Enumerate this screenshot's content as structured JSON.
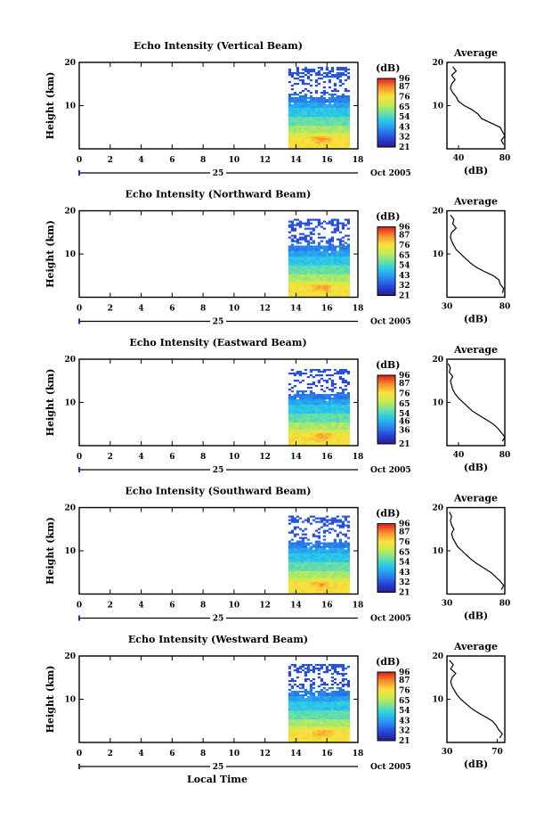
{
  "figure": {
    "common": {
      "height_axis_label": "Height (km)",
      "height_ticks": [
        "10",
        "20"
      ],
      "time_ticks": [
        "0",
        "2",
        "4",
        "6",
        "8",
        "10",
        "12",
        "14",
        "16",
        "18"
      ],
      "date_day": "25",
      "date_month": "Oct 2005",
      "colorbar_unit": "(dB)",
      "profile_title": "Average",
      "profile_xlabel": "(dB)",
      "xlabel": "Local Time"
    }
  },
  "chart_data": [
    {
      "type": "heatmap",
      "title": "Echo Intensity (Vertical Beam)",
      "ylabel": "Height (km)",
      "xlabel": "Local Time",
      "x_unit": "hour",
      "xlim": [
        0,
        18
      ],
      "ylim": [
        0,
        20
      ],
      "data_extent_hours": [
        13.5,
        17.3
      ],
      "data_top_km": 19,
      "colorbar_ticks": [
        "96",
        "87",
        "76",
        "65",
        "54",
        "43",
        "32",
        "21"
      ],
      "colorbar_ticks_num": [
        96,
        87,
        76,
        65,
        54,
        43,
        32,
        21
      ],
      "profile": {
        "title": "Average",
        "xlabel": "(dB)",
        "xticks": [
          "40",
          "80"
        ],
        "xlim": [
          30,
          80
        ],
        "heights_km": [
          1,
          2,
          3,
          4,
          5,
          6,
          7,
          8,
          9,
          10,
          11,
          12,
          13,
          14,
          15,
          16,
          17,
          18,
          19
        ],
        "values_db": [
          79,
          77,
          80,
          78,
          76,
          68,
          60,
          57,
          52,
          45,
          40,
          38,
          35,
          33,
          34,
          37,
          34,
          38,
          35
        ]
      }
    },
    {
      "type": "heatmap",
      "title": "Echo Intensity (Northward Beam)",
      "ylabel": "Height (km)",
      "xlabel": "Local Time",
      "x_unit": "hour",
      "xlim": [
        0,
        18
      ],
      "ylim": [
        0,
        20
      ],
      "data_extent_hours": [
        13.5,
        17.3
      ],
      "data_top_km": 18.5,
      "colorbar_ticks": [
        "96",
        "87",
        "76",
        "65",
        "54",
        "43",
        "32",
        "21"
      ],
      "colorbar_ticks_num": [
        96,
        87,
        76,
        65,
        54,
        43,
        32,
        21
      ],
      "profile": {
        "title": "Average",
        "xlabel": "(dB)",
        "xticks": [
          "30",
          "80"
        ],
        "xlim": [
          30,
          80
        ],
        "heights_km": [
          1,
          2,
          3,
          4,
          5,
          6,
          7,
          8,
          9,
          10,
          11,
          12,
          13,
          14,
          15,
          16,
          17,
          18,
          19
        ],
        "values_db": [
          78,
          79,
          76,
          75,
          70,
          62,
          55,
          50,
          46,
          42,
          38,
          36,
          34,
          33,
          34,
          38,
          35,
          36,
          33
        ]
      }
    },
    {
      "type": "heatmap",
      "title": "Echo Intensity (Eastward Beam)",
      "ylabel": "Height (km)",
      "xlabel": "Local Time",
      "x_unit": "hour",
      "xlim": [
        0,
        18
      ],
      "ylim": [
        0,
        20
      ],
      "data_extent_hours": [
        13.5,
        17.3
      ],
      "data_top_km": 18,
      "colorbar_ticks": [
        "96",
        "87",
        "76",
        "65",
        "54",
        "46",
        "36",
        "21"
      ],
      "colorbar_ticks_num": [
        96,
        87,
        76,
        65,
        54,
        46,
        36,
        21
      ],
      "profile": {
        "title": "Average",
        "xlabel": "(dB)",
        "xticks": [
          "40",
          "80"
        ],
        "xlim": [
          30,
          80
        ],
        "heights_km": [
          1,
          2,
          3,
          4,
          5,
          6,
          7,
          8,
          9,
          10,
          11,
          12,
          13,
          14,
          15,
          16,
          17,
          18,
          19
        ],
        "values_db": [
          78,
          80,
          77,
          74,
          70,
          64,
          58,
          52,
          48,
          44,
          40,
          37,
          35,
          34,
          33,
          35,
          32,
          33,
          31
        ]
      }
    },
    {
      "type": "heatmap",
      "title": "Echo Intensity (Southward Beam)",
      "ylabel": "Height (km)",
      "xlabel": "Local Time",
      "x_unit": "hour",
      "xlim": [
        0,
        18
      ],
      "ylim": [
        0,
        20
      ],
      "data_extent_hours": [
        13.5,
        17.3
      ],
      "data_top_km": 18.5,
      "colorbar_ticks": [
        "96",
        "87",
        "76",
        "65",
        "54",
        "43",
        "32",
        "21"
      ],
      "colorbar_ticks_num": [
        96,
        87,
        76,
        65,
        54,
        43,
        32,
        21
      ],
      "profile": {
        "title": "Average",
        "xlabel": "(dB)",
        "xticks": [
          "30",
          "80"
        ],
        "xlim": [
          30,
          80
        ],
        "heights_km": [
          1,
          2,
          3,
          4,
          5,
          6,
          7,
          8,
          9,
          10,
          11,
          12,
          13,
          14,
          15,
          16,
          17,
          18,
          19
        ],
        "values_db": [
          77,
          79,
          76,
          72,
          68,
          62,
          56,
          51,
          47,
          43,
          39,
          37,
          35,
          34,
          36,
          34,
          33,
          34,
          32
        ]
      }
    },
    {
      "type": "heatmap",
      "title": "Echo Intensity (Westward Beam)",
      "ylabel": "Height (km)",
      "xlabel": "Local Time",
      "x_unit": "hour",
      "xlim": [
        0,
        18
      ],
      "ylim": [
        0,
        20
      ],
      "data_extent_hours": [
        13.5,
        17.3
      ],
      "data_top_km": 18.5,
      "colorbar_ticks": [
        "96",
        "87",
        "76",
        "65",
        "54",
        "43",
        "32",
        "21"
      ],
      "colorbar_ticks_num": [
        96,
        87,
        76,
        65,
        54,
        43,
        32,
        21
      ],
      "profile": {
        "title": "Average",
        "xlabel": "(dB)",
        "xticks": [
          "30",
          "70"
        ],
        "xlim": [
          30,
          76
        ],
        "heights_km": [
          1,
          2,
          3,
          4,
          5,
          6,
          7,
          8,
          9,
          10,
          11,
          12,
          13,
          14,
          15,
          16,
          17,
          18,
          19
        ],
        "values_db": [
          72,
          74,
          71,
          69,
          66,
          60,
          54,
          49,
          45,
          41,
          38,
          36,
          34,
          33,
          34,
          37,
          33,
          35,
          32
        ]
      }
    }
  ]
}
